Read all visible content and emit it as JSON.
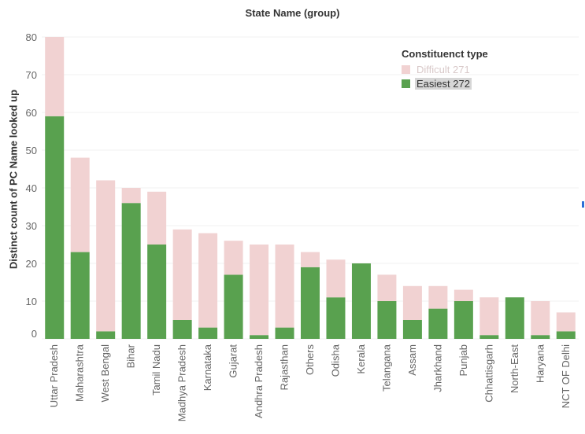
{
  "chart_data": {
    "type": "bar",
    "stacked": true,
    "title": "State Name (group)",
    "xlabel": "",
    "ylabel": "Distinct count of PC Name looked up",
    "ylim": [
      0,
      80
    ],
    "yticks": [
      0,
      10,
      20,
      30,
      40,
      50,
      60,
      70,
      80
    ],
    "gridlines": true,
    "legend_position": "top-right",
    "legend_title": "Constituenct type",
    "categories": [
      "Uttar Pradesh",
      "Maharashtra",
      "West Bengal",
      "Bihar",
      "Tamil Nadu",
      "Madhya Pradesh",
      "Karnataka",
      "Gujarat",
      "Andhra Pradesh",
      "Rajasthan",
      "Others",
      "Odisha",
      "Kerala",
      "Telangana",
      "Assam",
      "Jharkhand",
      "Punjab",
      "Chhattisgarh",
      "North-East",
      "Haryana",
      "NCT OF Delhi"
    ],
    "series": [
      {
        "name": "Easiest 272",
        "color": "#59a14f",
        "values": [
          59,
          23,
          2,
          36,
          25,
          5,
          3,
          17,
          1,
          3,
          19,
          11,
          20,
          10,
          5,
          8,
          10,
          1,
          11,
          1,
          2
        ]
      },
      {
        "name": "Difficult 271",
        "color": "#f1d2d2",
        "values": [
          21,
          25,
          40,
          4,
          14,
          24,
          25,
          9,
          24,
          22,
          4,
          10,
          0,
          7,
          9,
          6,
          3,
          10,
          0,
          9,
          5
        ]
      }
    ]
  }
}
